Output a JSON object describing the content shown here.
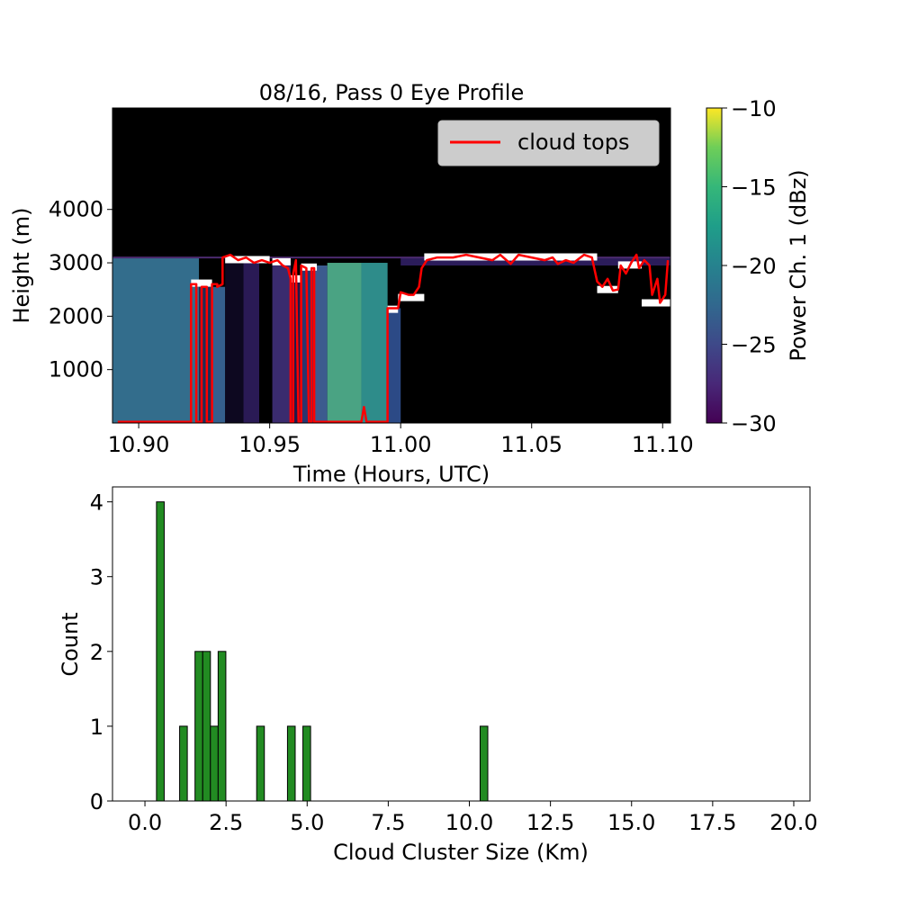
{
  "figure": {
    "background": "#ffffff"
  },
  "chart_data": [
    {
      "type": "heatmap",
      "title": "08/16, Pass 0 Eye Profile",
      "xlabel": "Time (Hours, UTC)",
      "ylabel": "Height (m)",
      "xlim": [
        10.89,
        11.103
      ],
      "ylim": [
        0,
        5900
      ],
      "x_ticks": [
        {
          "value": 10.9,
          "label": "10.90"
        },
        {
          "value": 10.95,
          "label": "10.95"
        },
        {
          "value": 11.0,
          "label": "11.00"
        },
        {
          "value": 11.05,
          "label": "11.05"
        },
        {
          "value": 11.1,
          "label": "11.10"
        }
      ],
      "y_ticks": [
        {
          "value": 1000,
          "label": "1000"
        },
        {
          "value": 2000,
          "label": "2000"
        },
        {
          "value": 3000,
          "label": "3000"
        },
        {
          "value": 4000,
          "label": "4000"
        }
      ],
      "colorbar": {
        "label": "Power Ch. 1 (dBz)",
        "range": [
          -30,
          -10
        ],
        "colormap": "viridis",
        "ticks": [
          {
            "value": -10,
            "label": "−10"
          },
          {
            "value": -15,
            "label": "−15"
          },
          {
            "value": -20,
            "label": "−20"
          },
          {
            "value": -25,
            "label": "−25"
          },
          {
            "value": -30,
            "label": "−30"
          }
        ]
      },
      "background_color": "#000000",
      "observation_ceiling_m": 3100,
      "regions": [
        {
          "x0": 10.89,
          "x1": 10.923,
          "y0": 0,
          "y1": 3100,
          "color": "#336d8c"
        },
        {
          "x0": 10.923,
          "x1": 10.928,
          "y0": 0,
          "y1": 2600,
          "color": "#1f2d55"
        },
        {
          "x0": 10.928,
          "x1": 10.933,
          "y0": 0,
          "y1": 2550,
          "color": "#355f8d"
        },
        {
          "x0": 10.933,
          "x1": 10.94,
          "y0": 0,
          "y1": 3000,
          "color": "#0d0820"
        },
        {
          "x0": 10.94,
          "x1": 10.946,
          "y0": 0,
          "y1": 3000,
          "color": "#2a1a55"
        },
        {
          "x0": 10.946,
          "x1": 10.951,
          "y0": 0,
          "y1": 3000,
          "color": "#000000"
        },
        {
          "x0": 10.951,
          "x1": 10.958,
          "y0": 0,
          "y1": 3000,
          "color": "#3a2b6e"
        },
        {
          "x0": 10.958,
          "x1": 10.962,
          "y0": 0,
          "y1": 2700,
          "color": "#201a4a"
        },
        {
          "x0": 10.962,
          "x1": 10.967,
          "y0": 0,
          "y1": 2850,
          "color": "#2b356e"
        },
        {
          "x0": 10.967,
          "x1": 10.972,
          "y0": 0,
          "y1": 2950,
          "color": "#3c5b8e"
        },
        {
          "x0": 10.972,
          "x1": 10.985,
          "y0": 0,
          "y1": 3000,
          "color": "#4aa383"
        },
        {
          "x0": 10.985,
          "x1": 10.995,
          "y0": 0,
          "y1": 3000,
          "color": "#2e8c8a"
        },
        {
          "x0": 10.995,
          "x1": 11.0,
          "y0": 0,
          "y1": 2150,
          "color": "#2c4a86"
        },
        {
          "x0": 11.0,
          "x1": 11.103,
          "y0": 2950,
          "y1": 3100,
          "color": "#2b1c5a"
        }
      ],
      "cloud_flags": [
        {
          "x0": 10.92,
          "x1": 10.928,
          "y": 2620
        },
        {
          "x0": 10.933,
          "x1": 10.95,
          "y": 3060
        },
        {
          "x0": 10.951,
          "x1": 10.958,
          "y": 3020
        },
        {
          "x0": 10.958,
          "x1": 10.962,
          "y": 2700
        },
        {
          "x0": 10.962,
          "x1": 10.968,
          "y": 2920
        },
        {
          "x0": 10.995,
          "x1": 10.999,
          "y": 2130
        },
        {
          "x0": 10.999,
          "x1": 11.009,
          "y": 2350
        },
        {
          "x0": 11.009,
          "x1": 11.075,
          "y": 3110
        },
        {
          "x0": 11.075,
          "x1": 11.083,
          "y": 2500
        },
        {
          "x0": 11.083,
          "x1": 11.092,
          "y": 2960
        },
        {
          "x0": 11.092,
          "x1": 11.103,
          "y": 2250
        }
      ],
      "legend": {
        "position": "top-right",
        "entries": [
          {
            "label": "cloud tops",
            "color": "#ff0000"
          }
        ]
      },
      "series": [
        {
          "name": "cloud tops",
          "color": "#ff0000",
          "points": [
            [
              10.892,
              20
            ],
            [
              10.92,
              20
            ],
            [
              10.92,
              2600
            ],
            [
              10.922,
              2600
            ],
            [
              10.922,
              20
            ],
            [
              10.924,
              20
            ],
            [
              10.924,
              2550
            ],
            [
              10.926,
              2550
            ],
            [
              10.926,
              20
            ],
            [
              10.928,
              20
            ],
            [
              10.928,
              2600
            ],
            [
              10.93,
              2600
            ],
            [
              10.93,
              2550
            ],
            [
              10.932,
              2600
            ],
            [
              10.932,
              3100
            ],
            [
              10.935,
              3150
            ],
            [
              10.938,
              3050
            ],
            [
              10.941,
              3100
            ],
            [
              10.944,
              3000
            ],
            [
              10.947,
              3050
            ],
            [
              10.95,
              3000
            ],
            [
              10.953,
              3050
            ],
            [
              10.955,
              2950
            ],
            [
              10.957,
              2900
            ],
            [
              10.958,
              2700
            ],
            [
              10.958,
              20
            ],
            [
              10.959,
              20
            ],
            [
              10.959,
              2800
            ],
            [
              10.96,
              3050
            ],
            [
              10.961,
              20
            ],
            [
              10.962,
              20
            ],
            [
              10.962,
              2950
            ],
            [
              10.964,
              2900
            ],
            [
              10.965,
              20
            ],
            [
              10.966,
              20
            ],
            [
              10.966,
              2900
            ],
            [
              10.967,
              2900
            ],
            [
              10.967,
              20
            ],
            [
              10.985,
              20
            ],
            [
              10.986,
              300
            ],
            [
              10.987,
              20
            ],
            [
              10.995,
              20
            ],
            [
              10.995,
              2150
            ],
            [
              10.999,
              2150
            ],
            [
              11.0,
              2450
            ],
            [
              11.003,
              2400
            ],
            [
              11.005,
              2400
            ],
            [
              11.007,
              2550
            ],
            [
              11.008,
              2900
            ],
            [
              11.01,
              3050
            ],
            [
              11.014,
              3100
            ],
            [
              11.02,
              3100
            ],
            [
              11.025,
              3150
            ],
            [
              11.03,
              3100
            ],
            [
              11.035,
              3050
            ],
            [
              11.038,
              3150
            ],
            [
              11.042,
              2980
            ],
            [
              11.045,
              3150
            ],
            [
              11.05,
              3100
            ],
            [
              11.055,
              3050
            ],
            [
              11.058,
              3100
            ],
            [
              11.06,
              2980
            ],
            [
              11.063,
              3050
            ],
            [
              11.066,
              3000
            ],
            [
              11.07,
              3150
            ],
            [
              11.073,
              3100
            ],
            [
              11.075,
              2650
            ],
            [
              11.077,
              2550
            ],
            [
              11.079,
              2700
            ],
            [
              11.081,
              2480
            ],
            [
              11.083,
              2500
            ],
            [
              11.084,
              2950
            ],
            [
              11.086,
              2800
            ],
            [
              11.088,
              3000
            ],
            [
              11.09,
              3150
            ],
            [
              11.091,
              2900
            ],
            [
              11.093,
              3050
            ],
            [
              11.095,
              2950
            ],
            [
              11.096,
              2400
            ],
            [
              11.098,
              2700
            ],
            [
              11.099,
              2250
            ],
            [
              11.101,
              2400
            ],
            [
              11.102,
              3050
            ]
          ]
        }
      ]
    },
    {
      "type": "bar",
      "title": "",
      "xlabel": "Cloud Cluster Size (Km)",
      "ylabel": "Count",
      "xlim": [
        -1.0,
        20.5
      ],
      "ylim": [
        0,
        4.2
      ],
      "bar_width": 0.2375,
      "bar_color": "#228b22",
      "bar_edge_color": "#000000",
      "x_ticks": [
        {
          "value": 0.0,
          "label": "0.0"
        },
        {
          "value": 2.5,
          "label": "2.5"
        },
        {
          "value": 5.0,
          "label": "5.0"
        },
        {
          "value": 7.5,
          "label": "7.5"
        },
        {
          "value": 10.0,
          "label": "10.0"
        },
        {
          "value": 12.5,
          "label": "12.5"
        },
        {
          "value": 15.0,
          "label": "15.0"
        },
        {
          "value": 17.5,
          "label": "17.5"
        },
        {
          "value": 20.0,
          "label": "20.0"
        }
      ],
      "y_ticks": [
        {
          "value": 0,
          "label": "0"
        },
        {
          "value": 1,
          "label": "1"
        },
        {
          "value": 2,
          "label": "2"
        },
        {
          "value": 3,
          "label": "3"
        },
        {
          "value": 4,
          "label": "4"
        }
      ],
      "bars": [
        {
          "x": 0.475,
          "value": 4
        },
        {
          "x": 1.1875,
          "value": 1
        },
        {
          "x": 1.6625,
          "value": 2
        },
        {
          "x": 1.9,
          "value": 2
        },
        {
          "x": 2.1375,
          "value": 1
        },
        {
          "x": 2.375,
          "value": 2
        },
        {
          "x": 3.5625,
          "value": 1
        },
        {
          "x": 4.5125,
          "value": 1
        },
        {
          "x": 4.9875,
          "value": 1
        },
        {
          "x": 10.45,
          "value": 1
        }
      ]
    }
  ]
}
